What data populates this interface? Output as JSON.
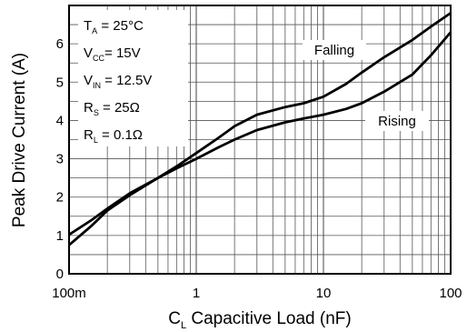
{
  "chart_data": {
    "type": "line",
    "x_scale": "log",
    "xlim": [
      0.1,
      100
    ],
    "ylim": [
      0,
      7
    ],
    "grid": true,
    "x_ticks": [
      {
        "value": 0.1,
        "label": "100m"
      },
      {
        "value": 1,
        "label": "1"
      },
      {
        "value": 10,
        "label": "10"
      },
      {
        "value": 100,
        "label": "100"
      }
    ],
    "y_ticks": [
      {
        "value": 0,
        "label": "0"
      },
      {
        "value": 1,
        "label": "1"
      },
      {
        "value": 2,
        "label": "2"
      },
      {
        "value": 3,
        "label": "3"
      },
      {
        "value": 4,
        "label": "4"
      },
      {
        "value": 5,
        "label": "5"
      },
      {
        "value": 6,
        "label": "6"
      }
    ],
    "xlabel": {
      "main": "C",
      "sub": "L",
      "rest": " Capacitive Load (nF)"
    },
    "ylabel": "Peak Drive Current (A)",
    "conditions": [
      {
        "main": "T",
        "sub": "A",
        "rest": " = 25°C"
      },
      {
        "main": "V",
        "sub": "CC",
        "rest": "= 15V"
      },
      {
        "main": "V",
        "sub": "IN",
        "rest": " = 12.5V"
      },
      {
        "main": "R",
        "sub": "S",
        "rest": " = 25Ω"
      },
      {
        "main": "R",
        "sub": "L",
        "rest": " = 0.1Ω"
      }
    ],
    "series": [
      {
        "name": "Falling",
        "x": [
          0.1,
          0.15,
          0.2,
          0.3,
          0.5,
          0.7,
          1,
          1.5,
          2,
          3,
          5,
          7,
          10,
          15,
          20,
          30,
          50,
          70,
          100
        ],
        "y": [
          0.75,
          1.25,
          1.65,
          2.05,
          2.5,
          2.8,
          3.15,
          3.55,
          3.85,
          4.15,
          4.35,
          4.45,
          4.62,
          4.95,
          5.25,
          5.65,
          6.1,
          6.45,
          6.8
        ]
      },
      {
        "name": "Rising",
        "x": [
          0.1,
          0.15,
          0.2,
          0.3,
          0.5,
          0.7,
          1,
          1.5,
          2,
          3,
          5,
          7,
          10,
          15,
          20,
          30,
          50,
          70,
          100
        ],
        "y": [
          1.02,
          1.4,
          1.7,
          2.1,
          2.5,
          2.75,
          3.0,
          3.3,
          3.5,
          3.75,
          3.95,
          4.05,
          4.15,
          4.3,
          4.45,
          4.75,
          5.2,
          5.7,
          6.3
        ]
      }
    ]
  }
}
